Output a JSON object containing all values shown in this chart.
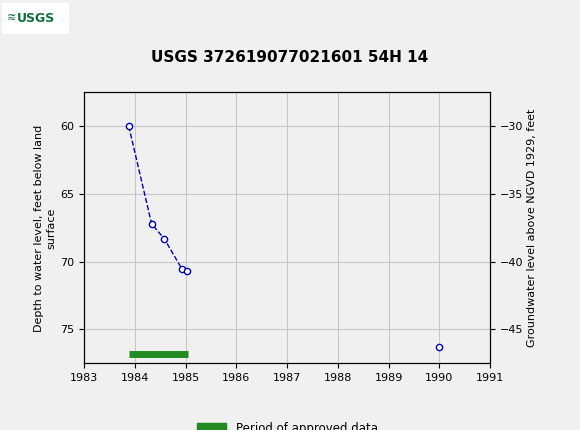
{
  "title": "USGS 372619077021601 54H 14",
  "ylabel_left": "Depth to water level, feet below land\nsurface",
  "ylabel_right": "Groundwater level above NGVD 1929, feet",
  "xlim": [
    1983,
    1991
  ],
  "ylim_left": [
    77.5,
    57.5
  ],
  "ylim_right": [
    -47.5,
    -27.5
  ],
  "xticks": [
    1983,
    1984,
    1985,
    1986,
    1987,
    1988,
    1989,
    1990,
    1991
  ],
  "yticks_left": [
    60,
    65,
    70,
    75
  ],
  "yticks_right": [
    -30,
    -35,
    -40,
    -45
  ],
  "data_x_connected": [
    1983.88,
    1984.33,
    1984.58,
    1984.93,
    1985.03
  ],
  "data_y_connected": [
    60.0,
    67.2,
    68.3,
    70.55,
    70.7
  ],
  "data_x_isolated": [
    1990.0
  ],
  "data_y_isolated": [
    76.3
  ],
  "approved_bar_x_start": 1983.88,
  "approved_bar_x_end": 1985.05,
  "approved_bar_y": 76.8,
  "header_color": "#0e6e3e",
  "line_color": "#0000bb",
  "marker_face": "#ffffff",
  "marker_edge": "#0000bb",
  "approved_color": "#228b22",
  "grid_color": "#c8c8c8",
  "bg_color": "#f0f0f0",
  "legend_label": "Period of approved data",
  "title_fontsize": 11,
  "axis_label_fontsize": 8,
  "tick_fontsize": 8
}
